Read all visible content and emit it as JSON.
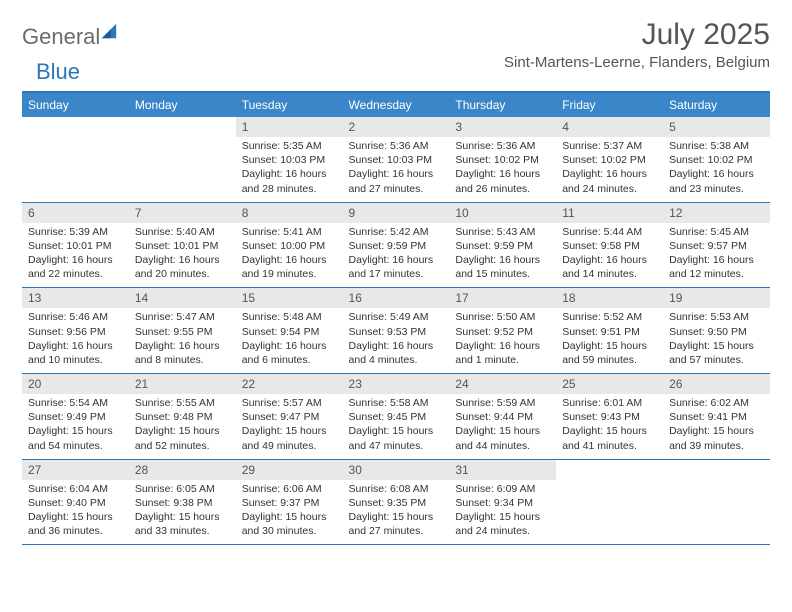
{
  "brand": {
    "name_grey": "General",
    "name_blue": "Blue"
  },
  "title": {
    "month": "July 2025",
    "location": "Sint-Martens-Leerne, Flanders, Belgium"
  },
  "colors": {
    "header_bg": "#3a86c8",
    "header_text": "#ffffff",
    "rule": "#2f76b8",
    "daynum_bg": "#e8e8e8",
    "text": "#333333",
    "title_text": "#555555",
    "logo_grey": "#6b6b6b",
    "logo_blue": "#2f76b8",
    "page_bg": "#ffffff"
  },
  "weekdays": [
    "Sunday",
    "Monday",
    "Tuesday",
    "Wednesday",
    "Thursday",
    "Friday",
    "Saturday"
  ],
  "layout": {
    "first_weekday_index": 2,
    "days_in_month": 31,
    "rows": 5,
    "cols": 7,
    "font_family": "Arial",
    "daynum_fontsize": 12,
    "detail_fontsize": 10.5
  },
  "days": [
    {
      "n": 1,
      "sunrise": "5:35 AM",
      "sunset": "10:03 PM",
      "daylight": "16 hours and 28 minutes."
    },
    {
      "n": 2,
      "sunrise": "5:36 AM",
      "sunset": "10:03 PM",
      "daylight": "16 hours and 27 minutes."
    },
    {
      "n": 3,
      "sunrise": "5:36 AM",
      "sunset": "10:02 PM",
      "daylight": "16 hours and 26 minutes."
    },
    {
      "n": 4,
      "sunrise": "5:37 AM",
      "sunset": "10:02 PM",
      "daylight": "16 hours and 24 minutes."
    },
    {
      "n": 5,
      "sunrise": "5:38 AM",
      "sunset": "10:02 PM",
      "daylight": "16 hours and 23 minutes."
    },
    {
      "n": 6,
      "sunrise": "5:39 AM",
      "sunset": "10:01 PM",
      "daylight": "16 hours and 22 minutes."
    },
    {
      "n": 7,
      "sunrise": "5:40 AM",
      "sunset": "10:01 PM",
      "daylight": "16 hours and 20 minutes."
    },
    {
      "n": 8,
      "sunrise": "5:41 AM",
      "sunset": "10:00 PM",
      "daylight": "16 hours and 19 minutes."
    },
    {
      "n": 9,
      "sunrise": "5:42 AM",
      "sunset": "9:59 PM",
      "daylight": "16 hours and 17 minutes."
    },
    {
      "n": 10,
      "sunrise": "5:43 AM",
      "sunset": "9:59 PM",
      "daylight": "16 hours and 15 minutes."
    },
    {
      "n": 11,
      "sunrise": "5:44 AM",
      "sunset": "9:58 PM",
      "daylight": "16 hours and 14 minutes."
    },
    {
      "n": 12,
      "sunrise": "5:45 AM",
      "sunset": "9:57 PM",
      "daylight": "16 hours and 12 minutes."
    },
    {
      "n": 13,
      "sunrise": "5:46 AM",
      "sunset": "9:56 PM",
      "daylight": "16 hours and 10 minutes."
    },
    {
      "n": 14,
      "sunrise": "5:47 AM",
      "sunset": "9:55 PM",
      "daylight": "16 hours and 8 minutes."
    },
    {
      "n": 15,
      "sunrise": "5:48 AM",
      "sunset": "9:54 PM",
      "daylight": "16 hours and 6 minutes."
    },
    {
      "n": 16,
      "sunrise": "5:49 AM",
      "sunset": "9:53 PM",
      "daylight": "16 hours and 4 minutes."
    },
    {
      "n": 17,
      "sunrise": "5:50 AM",
      "sunset": "9:52 PM",
      "daylight": "16 hours and 1 minute."
    },
    {
      "n": 18,
      "sunrise": "5:52 AM",
      "sunset": "9:51 PM",
      "daylight": "15 hours and 59 minutes."
    },
    {
      "n": 19,
      "sunrise": "5:53 AM",
      "sunset": "9:50 PM",
      "daylight": "15 hours and 57 minutes."
    },
    {
      "n": 20,
      "sunrise": "5:54 AM",
      "sunset": "9:49 PM",
      "daylight": "15 hours and 54 minutes."
    },
    {
      "n": 21,
      "sunrise": "5:55 AM",
      "sunset": "9:48 PM",
      "daylight": "15 hours and 52 minutes."
    },
    {
      "n": 22,
      "sunrise": "5:57 AM",
      "sunset": "9:47 PM",
      "daylight": "15 hours and 49 minutes."
    },
    {
      "n": 23,
      "sunrise": "5:58 AM",
      "sunset": "9:45 PM",
      "daylight": "15 hours and 47 minutes."
    },
    {
      "n": 24,
      "sunrise": "5:59 AM",
      "sunset": "9:44 PM",
      "daylight": "15 hours and 44 minutes."
    },
    {
      "n": 25,
      "sunrise": "6:01 AM",
      "sunset": "9:43 PM",
      "daylight": "15 hours and 41 minutes."
    },
    {
      "n": 26,
      "sunrise": "6:02 AM",
      "sunset": "9:41 PM",
      "daylight": "15 hours and 39 minutes."
    },
    {
      "n": 27,
      "sunrise": "6:04 AM",
      "sunset": "9:40 PM",
      "daylight": "15 hours and 36 minutes."
    },
    {
      "n": 28,
      "sunrise": "6:05 AM",
      "sunset": "9:38 PM",
      "daylight": "15 hours and 33 minutes."
    },
    {
      "n": 29,
      "sunrise": "6:06 AM",
      "sunset": "9:37 PM",
      "daylight": "15 hours and 30 minutes."
    },
    {
      "n": 30,
      "sunrise": "6:08 AM",
      "sunset": "9:35 PM",
      "daylight": "15 hours and 27 minutes."
    },
    {
      "n": 31,
      "sunrise": "6:09 AM",
      "sunset": "9:34 PM",
      "daylight": "15 hours and 24 minutes."
    }
  ],
  "labels": {
    "sunrise": "Sunrise:",
    "sunset": "Sunset:",
    "daylight": "Daylight:"
  }
}
